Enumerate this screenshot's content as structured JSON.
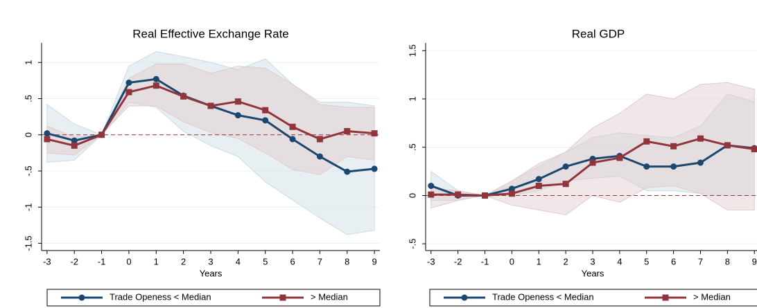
{
  "chart_data": [
    {
      "type": "line",
      "title": "Real Effective Exchange Rate",
      "xlabel": "Years",
      "x": [
        -3,
        -2,
        -1,
        0,
        1,
        2,
        3,
        4,
        5,
        6,
        7,
        8,
        9
      ],
      "xlim": [
        -3.2,
        9.2
      ],
      "xticks": [
        -3,
        -2,
        -1,
        0,
        1,
        2,
        3,
        4,
        5,
        6,
        7,
        8,
        9
      ],
      "ylim": [
        -1.6,
        1.27
      ],
      "yticks": [
        {
          "value": -1.5,
          "label": "-1.5"
        },
        -1,
        {
          "value": -0.5,
          "label": "-.5"
        },
        0,
        {
          "value": 0.5,
          "label": ".5"
        },
        1
      ],
      "grid": true,
      "reference_line": 0,
      "series": [
        {
          "name": "Trade Openess < Median",
          "color": "#1a476f",
          "marker": "circle",
          "band_color": "#c9dbe5",
          "values": [
            0.02,
            -0.08,
            0,
            0.72,
            0.77,
            0.54,
            0.4,
            0.27,
            0.2,
            -0.06,
            -0.3,
            -0.51,
            -0.47
          ],
          "upper": [
            0.42,
            0.15,
            0,
            0.95,
            1.15,
            1.08,
            1.0,
            0.9,
            1.05,
            0.7,
            0.45,
            0.45,
            0.4
          ],
          "lower": [
            -0.38,
            -0.35,
            0,
            0.45,
            0.38,
            0.05,
            -0.15,
            -0.3,
            -0.65,
            -0.9,
            -1.15,
            -1.38,
            -1.32
          ]
        },
        {
          "name": "> Median",
          "color": "#90353b",
          "marker": "square",
          "band_color": "#e3c9cb",
          "values": [
            -0.06,
            -0.15,
            0,
            0.59,
            0.68,
            0.53,
            0.4,
            0.46,
            0.34,
            0.11,
            -0.06,
            0.05,
            0.02
          ],
          "upper": [
            0.12,
            -0.03,
            0,
            0.78,
            0.98,
            0.98,
            0.85,
            0.95,
            0.92,
            0.7,
            0.42,
            0.38,
            0.38
          ],
          "lower": [
            -0.25,
            -0.28,
            0,
            0.4,
            0.4,
            0.18,
            0.03,
            -0.05,
            -0.25,
            -0.48,
            -0.55,
            -0.3,
            -0.35
          ]
        }
      ]
    },
    {
      "type": "line",
      "title": "Real GDP",
      "xlabel": "Years",
      "x": [
        -3,
        -2,
        -1,
        0,
        1,
        2,
        3,
        4,
        5,
        6,
        7,
        8,
        9
      ],
      "xlim": [
        -3.2,
        9.2
      ],
      "xticks": [
        -3,
        -2,
        -1,
        0,
        1,
        2,
        3,
        4,
        5,
        6,
        7,
        8,
        9
      ],
      "ylim": [
        -0.57,
        1.58
      ],
      "yticks": [
        {
          "value": -0.5,
          "label": "-.5"
        },
        0,
        {
          "value": 0.5,
          "label": ".5"
        },
        1,
        1.5
      ],
      "grid": true,
      "reference_line": 0,
      "series": [
        {
          "name": "Trade Openess < Median",
          "color": "#1a476f",
          "marker": "circle",
          "band_color": "#c9dbe5",
          "values": [
            0.1,
            0,
            0,
            0.07,
            0.17,
            0.3,
            0.38,
            0.41,
            0.3,
            0.3,
            0.34,
            0.52,
            0.49
          ],
          "upper": [
            0.25,
            0.05,
            0,
            0.15,
            0.3,
            0.45,
            0.6,
            0.65,
            0.62,
            0.6,
            0.72,
            1.05,
            0.97
          ],
          "lower": [
            -0.05,
            -0.05,
            0,
            0,
            0.05,
            0.15,
            0.18,
            0.2,
            0.05,
            0.05,
            0.02,
            0.0,
            0.0
          ]
        },
        {
          "name": "> Median",
          "color": "#90353b",
          "marker": "square",
          "band_color": "#e3c9cb",
          "values": [
            0.01,
            0.01,
            0,
            0.02,
            0.1,
            0.12,
            0.34,
            0.39,
            0.56,
            0.51,
            0.59,
            0.52,
            0.48
          ],
          "upper": [
            0.08,
            0.05,
            0,
            0.15,
            0.33,
            0.45,
            0.7,
            0.85,
            1.05,
            1.0,
            1.15,
            1.17,
            1.1
          ],
          "lower": [
            -0.13,
            -0.05,
            0,
            -0.1,
            -0.15,
            -0.2,
            0.0,
            -0.07,
            0.08,
            0.1,
            0.02,
            -0.15,
            -0.15
          ]
        }
      ]
    }
  ]
}
